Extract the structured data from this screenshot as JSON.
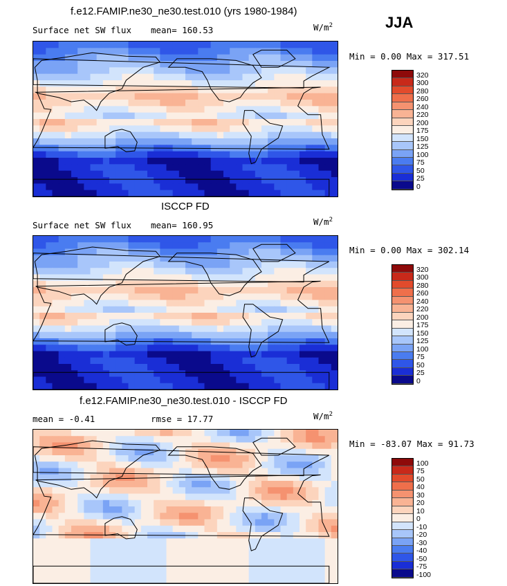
{
  "season": "JJA",
  "panels": [
    {
      "title": "f.e12.FAMIP.ne30_ne30.test.010 (yrs 1980-1984)",
      "left_label": "Surface net SW flux",
      "stat_label": "mean= 160.53",
      "units": "W/m",
      "units_sup": "2",
      "minmax": "Min =    0.00 Max = 317.51",
      "field": "model",
      "colors": [
        "#0a0a8c",
        "#1a2ed6",
        "#2f56e8",
        "#4a7cf0",
        "#7aa3f5",
        "#a8c6fa",
        "#d2e4fc",
        "#fbeee4",
        "#fcd4bd",
        "#f9b394",
        "#f59270",
        "#ef6f4b",
        "#e24b2c",
        "#c8291a",
        "#8e0a0a"
      ],
      "levels": [
        "320",
        "300",
        "280",
        "260",
        "240",
        "220",
        "200",
        "175",
        "150",
        "125",
        "100",
        "75",
        "50",
        "25",
        "0"
      ]
    },
    {
      "title": "ISCCP FD",
      "left_label": "Surface net SW flux",
      "stat_label": "mean= 160.95",
      "units": "W/m",
      "units_sup": "2",
      "minmax": "Min =    0.00 Max = 302.14",
      "field": "obs",
      "colors": [
        "#0a0a8c",
        "#1a2ed6",
        "#2f56e8",
        "#4a7cf0",
        "#7aa3f5",
        "#a8c6fa",
        "#d2e4fc",
        "#fbeee4",
        "#fcd4bd",
        "#f9b394",
        "#f59270",
        "#ef6f4b",
        "#e24b2c",
        "#c8291a",
        "#8e0a0a"
      ],
      "levels": [
        "320",
        "300",
        "280",
        "260",
        "240",
        "220",
        "200",
        "175",
        "150",
        "125",
        "100",
        "75",
        "50",
        "25",
        "0"
      ]
    },
    {
      "title": "f.e12.FAMIP.ne30_ne30.test.010 - ISCCP FD",
      "left_label": "mean =   -0.41",
      "stat_label": "rmse =   17.77",
      "units": "W/m",
      "units_sup": "2",
      "minmax": "Min = -83.07 Max =  91.73",
      "field": "diff",
      "colors": [
        "#0a0a8c",
        "#1a2ed6",
        "#2f56e8",
        "#4a7cf0",
        "#7aa3f5",
        "#a8c6fa",
        "#d2e4fc",
        "#fbeee4",
        "#fcd4bd",
        "#f9b394",
        "#f59270",
        "#ef6f4b",
        "#e24b2c",
        "#c8291a",
        "#8e0a0a"
      ],
      "levels": [
        "100",
        "75",
        "50",
        "40",
        "30",
        "20",
        "10",
        "0",
        "-10",
        "-20",
        "-30",
        "-40",
        "-50",
        "-75",
        "-100"
      ]
    }
  ]
}
